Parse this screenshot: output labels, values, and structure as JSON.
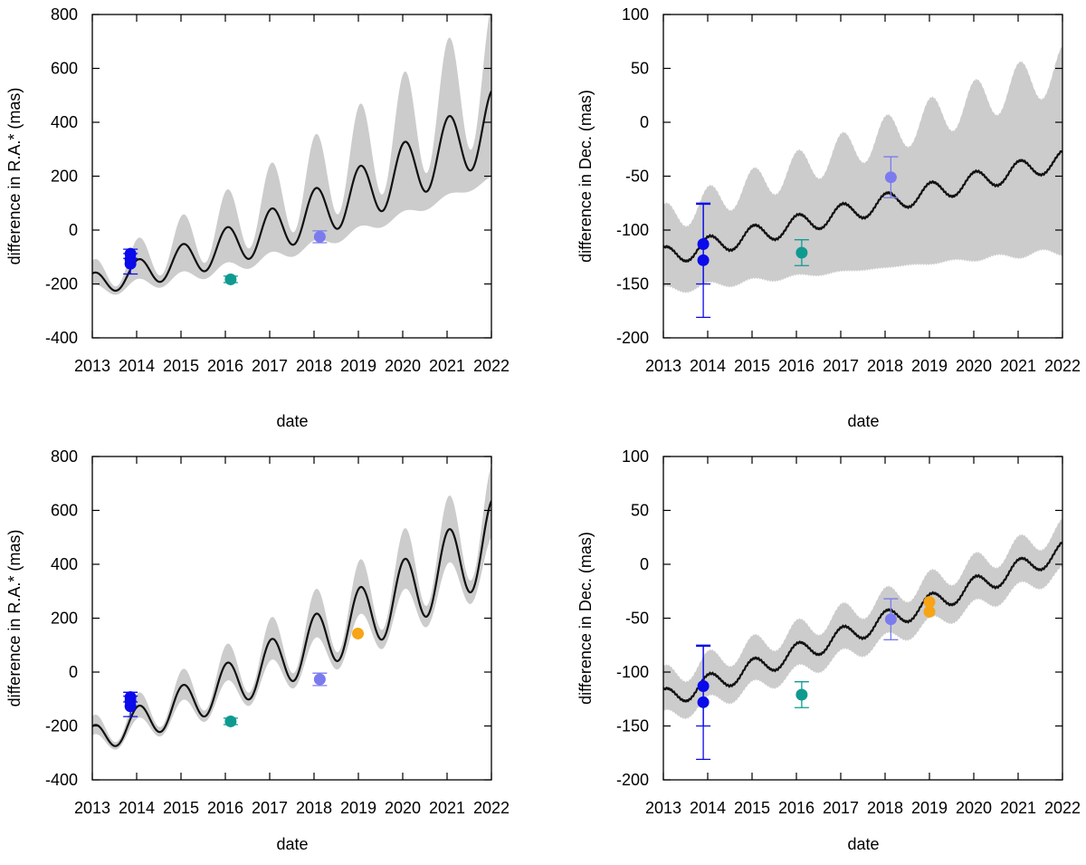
{
  "figure": {
    "palette": {
      "band": "#cccccc",
      "curve": "#111111",
      "blue": "#0a0aea",
      "teal": "#0f9a90",
      "lavender": "#7b7bef",
      "orange": "#f7a416"
    }
  },
  "chart_data": [
    {
      "id": "top-left",
      "type": "line",
      "ylabel": "difference in R.A.* (mas)",
      "xlabel": "date",
      "xlim": [
        2013,
        2022
      ],
      "ylim": [
        -400,
        800
      ],
      "xticks": [
        "2013",
        "2014",
        "2015",
        "2016",
        "2017",
        "2018",
        "2019",
        "2020",
        "2021",
        "2022"
      ],
      "yticks": [
        "-400",
        "-200",
        "0",
        "200",
        "400",
        "600",
        "800"
      ],
      "model": {
        "trend_start": -200,
        "trend_end": 390,
        "quad": 0.45,
        "amp_start": 40,
        "amp_end": 130,
        "band_start": 30,
        "band_end": 200,
        "band_osc": 0.6
      },
      "points": [
        {
          "x": 2013.86,
          "y": -88,
          "err": 17,
          "color": "blue"
        },
        {
          "x": 2013.86,
          "y": -108,
          "err": 0,
          "color": "blue"
        },
        {
          "x": 2013.86,
          "y": -125,
          "err": 38,
          "color": "blue"
        },
        {
          "x": 2016.12,
          "y": -183,
          "err": 12,
          "color": "teal"
        },
        {
          "x": 2018.13,
          "y": -25,
          "err": 22,
          "color": "lavender"
        }
      ]
    },
    {
      "id": "top-right",
      "type": "line",
      "ylabel": "difference in Dec. (mas)",
      "xlabel": "date",
      "xlim": [
        2013,
        2022
      ],
      "ylim": [
        -200,
        100
      ],
      "xticks": [
        "2013",
        "2014",
        "2015",
        "2016",
        "2017",
        "2018",
        "2019",
        "2020",
        "2021",
        "2022"
      ],
      "yticks": [
        "-200",
        "-150",
        "-100",
        "-50",
        "0",
        "50",
        "100"
      ],
      "model": {
        "trend_start": -125,
        "trend_end": -35,
        "quad": 0.0,
        "amp_start": 9,
        "amp_end": 9,
        "band_start": 35,
        "band_end": 85,
        "band_osc": 0.15
      },
      "points": [
        {
          "x": 2013.9,
          "y": -113,
          "err": 37,
          "color": "blue"
        },
        {
          "x": 2013.9,
          "y": -128,
          "err": 53,
          "color": "blue"
        },
        {
          "x": 2016.12,
          "y": -121,
          "err": 12,
          "color": "teal"
        },
        {
          "x": 2018.13,
          "y": -51,
          "err": 19,
          "color": "lavender"
        }
      ]
    },
    {
      "id": "bottom-left",
      "type": "line",
      "ylabel": "difference in R.A.* (mas)",
      "xlabel": "date",
      "xlim": [
        2013,
        2022
      ],
      "ylim": [
        -400,
        800
      ],
      "xticks": [
        "2013",
        "2014",
        "2015",
        "2016",
        "2017",
        "2018",
        "2019",
        "2020",
        "2021",
        "2022"
      ],
      "yticks": [
        "-400",
        "-200",
        "0",
        "200",
        "400",
        "600",
        "800"
      ],
      "model": {
        "trend_start": -250,
        "trend_end": 490,
        "quad": 0.3,
        "amp_start": 50,
        "amp_end": 150,
        "band_start": 25,
        "band_end": 90,
        "band_osc": 0.5
      },
      "points": [
        {
          "x": 2013.86,
          "y": -93,
          "err": 18,
          "color": "blue"
        },
        {
          "x": 2013.86,
          "y": -108,
          "err": 0,
          "color": "blue"
        },
        {
          "x": 2013.86,
          "y": -127,
          "err": 38,
          "color": "blue"
        },
        {
          "x": 2016.12,
          "y": -183,
          "err": 12,
          "color": "teal"
        },
        {
          "x": 2018.13,
          "y": -27,
          "err": 23,
          "color": "lavender"
        },
        {
          "x": 2018.99,
          "y": 143,
          "err": 0,
          "color": "orange"
        }
      ]
    },
    {
      "id": "bottom-right",
      "type": "line",
      "ylabel": "difference in Dec. (mas)",
      "xlabel": "date",
      "xlim": [
        2013,
        2022
      ],
      "ylim": [
        -200,
        100
      ],
      "xticks": [
        "2013",
        "2014",
        "2015",
        "2016",
        "2017",
        "2018",
        "2019",
        "2020",
        "2021",
        "2022"
      ],
      "yticks": [
        "-200",
        "-150",
        "-100",
        "-50",
        "0",
        "50",
        "100"
      ],
      "model": {
        "trend_start": -125,
        "trend_end": 12,
        "quad": 0.1,
        "amp_start": 9,
        "amp_end": 9,
        "band_start": 20,
        "band_end": 20,
        "band_osc": 0.1
      },
      "points": [
        {
          "x": 2013.9,
          "y": -113,
          "err": 37,
          "color": "blue"
        },
        {
          "x": 2013.9,
          "y": -128,
          "err": 53,
          "color": "blue"
        },
        {
          "x": 2016.12,
          "y": -121,
          "err": 12,
          "color": "teal"
        },
        {
          "x": 2018.13,
          "y": -51,
          "err": 19,
          "color": "lavender"
        },
        {
          "x": 2019.0,
          "y": -35,
          "err": 0,
          "color": "orange"
        },
        {
          "x": 2019.0,
          "y": -44,
          "err": 0,
          "color": "orange"
        }
      ]
    }
  ]
}
